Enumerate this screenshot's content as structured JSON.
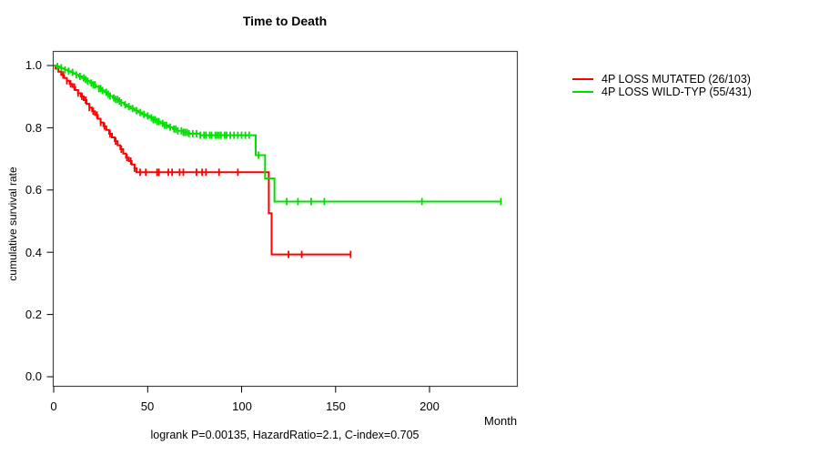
{
  "chart_data": {
    "type": "line",
    "variant": "kaplan_meier_step_survival",
    "title": "Time to Death",
    "xlabel": "Month",
    "ylabel": "cumulative survival rate",
    "xlim": [
      0,
      247
    ],
    "ylim": [
      0,
      1.04
    ],
    "grid": false,
    "legend_position": "top-right-outside",
    "x_ticks": [
      0,
      50,
      100,
      150,
      200
    ],
    "x_tick_labels": [
      "0",
      "50",
      "100",
      "150",
      "200"
    ],
    "y_ticks": [
      0,
      0.2,
      0.4,
      0.6,
      0.8,
      1.0
    ],
    "y_tick_labels": [
      "0.0",
      "0.2",
      "0.4",
      "0.6",
      "0.8",
      "1.0"
    ],
    "annotation": "logrank P=0.00135, HazardRatio=2.1, C-index=0.705",
    "box_color": "#444444",
    "series": [
      {
        "name": "4P LOSS MUTATED (26/103)",
        "color": "#ff0000",
        "end_month": 158,
        "final_survival": 0.39,
        "steps_month_survival": [
          [
            0,
            1.0
          ],
          [
            1,
            0.99
          ],
          [
            2.5,
            0.98
          ],
          [
            4,
            0.97
          ],
          [
            5.5,
            0.96
          ],
          [
            7,
            0.951
          ],
          [
            8.5,
            0.941
          ],
          [
            10,
            0.931
          ],
          [
            11.5,
            0.921
          ],
          [
            13,
            0.911
          ],
          [
            14.5,
            0.901
          ],
          [
            16,
            0.889
          ],
          [
            17.5,
            0.877
          ],
          [
            19,
            0.865
          ],
          [
            20.5,
            0.853
          ],
          [
            22,
            0.841
          ],
          [
            23.5,
            0.829
          ],
          [
            25,
            0.817
          ],
          [
            26.5,
            0.805
          ],
          [
            28,
            0.793
          ],
          [
            29.5,
            0.781
          ],
          [
            31,
            0.769
          ],
          [
            32.5,
            0.757
          ],
          [
            34,
            0.744
          ],
          [
            35.5,
            0.731
          ],
          [
            37,
            0.717
          ],
          [
            38.5,
            0.704
          ],
          [
            40,
            0.693
          ],
          [
            41.5,
            0.682
          ],
          [
            43,
            0.67
          ],
          [
            44,
            0.657
          ],
          [
            114.5,
            0.525
          ],
          [
            116,
            0.393
          ]
        ],
        "censor_months": [
          5,
          7,
          9,
          11,
          13,
          15,
          17,
          19,
          21,
          23,
          25,
          27,
          30,
          33,
          36,
          39,
          41,
          43,
          46,
          49,
          55,
          56,
          61,
          63,
          67,
          69,
          76,
          79,
          81,
          88,
          98,
          125,
          132,
          158
        ]
      },
      {
        "name": "4P LOSS WILD-TYP (55/431)",
        "color": "#00e000",
        "end_month": 238,
        "final_survival": 0.56,
        "steps_month_survival": [
          [
            0,
            1.0
          ],
          [
            1.5,
            0.997
          ],
          [
            3,
            0.993
          ],
          [
            4.5,
            0.99
          ],
          [
            6,
            0.986
          ],
          [
            7.5,
            0.982
          ],
          [
            9,
            0.978
          ],
          [
            10.5,
            0.974
          ],
          [
            12,
            0.97
          ],
          [
            13.5,
            0.965
          ],
          [
            15,
            0.96
          ],
          [
            16.5,
            0.955
          ],
          [
            18,
            0.95
          ],
          [
            19.5,
            0.944
          ],
          [
            21,
            0.938
          ],
          [
            22.5,
            0.932
          ],
          [
            24,
            0.926
          ],
          [
            25.5,
            0.92
          ],
          [
            27,
            0.914
          ],
          [
            28.5,
            0.908
          ],
          [
            30,
            0.902
          ],
          [
            31.5,
            0.896
          ],
          [
            33,
            0.891
          ],
          [
            34.5,
            0.886
          ],
          [
            36,
            0.88
          ],
          [
            37.5,
            0.874
          ],
          [
            39,
            0.868
          ],
          [
            41,
            0.862
          ],
          [
            43,
            0.855
          ],
          [
            45,
            0.849
          ],
          [
            47,
            0.843
          ],
          [
            49,
            0.838
          ],
          [
            51,
            0.832
          ],
          [
            53,
            0.826
          ],
          [
            55,
            0.82
          ],
          [
            57,
            0.814
          ],
          [
            59,
            0.808
          ],
          [
            61,
            0.802
          ],
          [
            63.5,
            0.796
          ],
          [
            66,
            0.79
          ],
          [
            69,
            0.785
          ],
          [
            72,
            0.781
          ],
          [
            78,
            0.776
          ],
          [
            107.5,
            0.712
          ],
          [
            112.5,
            0.637
          ],
          [
            117.5,
            0.563
          ]
        ],
        "censor_months": [
          2,
          4,
          6,
          8,
          10,
          12,
          14,
          16,
          17,
          18,
          20,
          21,
          22,
          24,
          25,
          26,
          28,
          29,
          30,
          32,
          33,
          34,
          35,
          36,
          38,
          40,
          42,
          44,
          46,
          48,
          50,
          52,
          53,
          54,
          55,
          56,
          58,
          59,
          60,
          62,
          64,
          65,
          66,
          68,
          69,
          70,
          71,
          72,
          74,
          76,
          78,
          80,
          81,
          83,
          84,
          86,
          87,
          88,
          89,
          91,
          92,
          94,
          96,
          98,
          100,
          102,
          104,
          109,
          124,
          130,
          137,
          144,
          196,
          238
        ]
      }
    ]
  }
}
